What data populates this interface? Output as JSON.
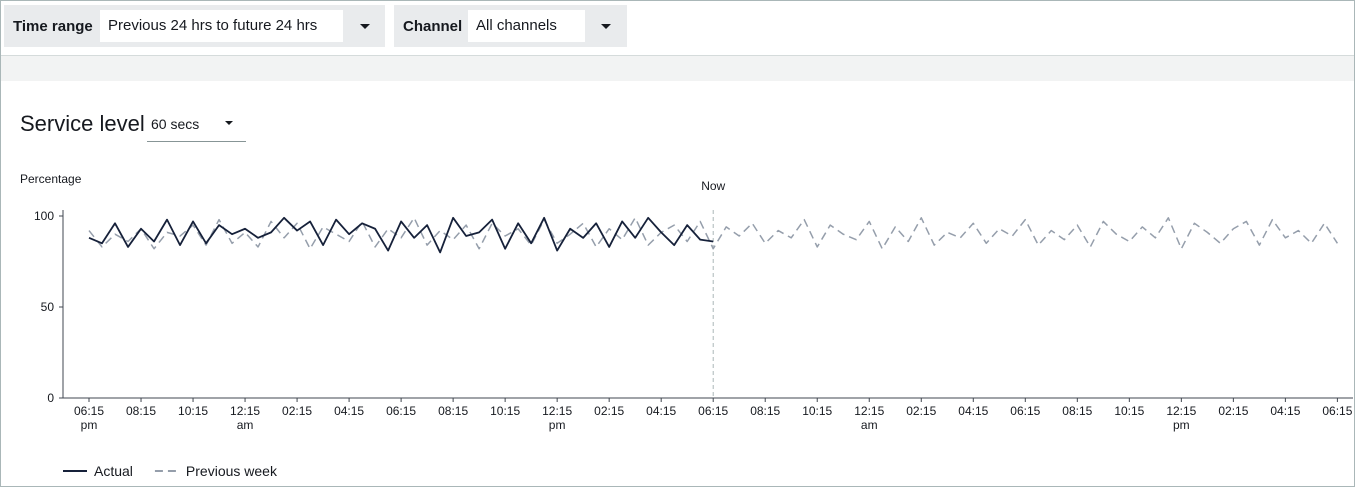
{
  "filters": [
    {
      "label": "Time range",
      "value": "Previous 24 hrs to future 24 hrs"
    },
    {
      "label": "Channel",
      "value": "All channels"
    }
  ],
  "panel": {
    "title": "Service level",
    "dropdown": "60 secs"
  },
  "chart_data": {
    "type": "line",
    "y_label": "Percentage",
    "annotation": {
      "label": "Now",
      "x": 24
    },
    "xlim": [
      -1,
      48.6
    ],
    "ylim": [
      0,
      100
    ],
    "yticks": [
      0,
      50,
      100
    ],
    "xticks": [
      {
        "value": 0,
        "label": "06:15 pm"
      },
      {
        "value": 2,
        "label": "08:15"
      },
      {
        "value": 4,
        "label": "10:15"
      },
      {
        "value": 6,
        "label": "12:15 am"
      },
      {
        "value": 8,
        "label": "02:15"
      },
      {
        "value": 10,
        "label": "04:15"
      },
      {
        "value": 12,
        "label": "06:15"
      },
      {
        "value": 14,
        "label": "08:15"
      },
      {
        "value": 16,
        "label": "10:15"
      },
      {
        "value": 18,
        "label": "12:15 pm"
      },
      {
        "value": 20,
        "label": "02:15"
      },
      {
        "value": 22,
        "label": "04:15"
      },
      {
        "value": 24,
        "label": "06:15"
      },
      {
        "value": 26,
        "label": "08:15"
      },
      {
        "value": 28,
        "label": "10:15"
      },
      {
        "value": 30,
        "label": "12:15 am"
      },
      {
        "value": 32,
        "label": "02:15"
      },
      {
        "value": 34,
        "label": "04:15"
      },
      {
        "value": 36,
        "label": "06:15"
      },
      {
        "value": 38,
        "label": "08:15"
      },
      {
        "value": 40,
        "label": "10:15"
      },
      {
        "value": 42,
        "label": "12:15 pm"
      },
      {
        "value": 44,
        "label": "02:15"
      },
      {
        "value": 46,
        "label": "04:15"
      },
      {
        "value": 48,
        "label": "06:15"
      }
    ],
    "x": [
      0,
      0.5,
      1,
      1.5,
      2,
      2.5,
      3,
      3.5,
      4,
      4.5,
      5,
      5.5,
      6,
      6.5,
      7,
      7.5,
      8,
      8.5,
      9,
      9.5,
      10,
      10.5,
      11,
      11.5,
      12,
      12.5,
      13,
      13.5,
      14,
      14.5,
      15,
      15.5,
      16,
      16.5,
      17,
      17.5,
      18,
      18.5,
      19,
      19.5,
      20,
      20.5,
      21,
      21.5,
      22,
      22.5,
      23,
      23.5,
      24,
      24.5,
      25,
      25.5,
      26,
      26.5,
      27,
      27.5,
      28,
      28.5,
      29,
      29.5,
      30,
      30.5,
      31,
      31.5,
      32,
      32.5,
      33,
      33.5,
      34,
      34.5,
      35,
      35.5,
      36,
      36.5,
      37,
      37.5,
      38,
      38.5,
      39,
      39.5,
      40,
      40.5,
      41,
      41.5,
      42,
      42.5,
      43,
      43.5,
      44,
      44.5,
      45,
      45.5,
      46,
      46.5,
      47,
      47.5,
      48
    ],
    "series": [
      {
        "name": "Actual",
        "color": "#16213a",
        "dashed": false,
        "values": [
          88,
          85,
          96,
          83,
          93,
          86,
          98,
          84,
          97,
          85,
          95,
          90,
          93,
          88,
          91,
          99,
          92,
          97,
          84,
          98,
          90,
          96,
          93,
          81,
          97,
          88,
          95,
          80,
          99,
          89,
          91,
          98,
          82,
          96,
          85,
          99,
          81,
          93,
          88,
          96,
          83,
          97,
          88,
          99,
          91,
          84,
          95,
          87,
          86,
          null,
          null,
          null,
          null,
          null,
          null,
          null,
          null,
          null,
          null,
          null,
          null,
          null,
          null,
          null,
          null,
          null,
          null,
          null,
          null,
          null,
          null,
          null,
          null,
          null,
          null,
          null,
          null,
          null,
          null,
          null,
          null,
          null,
          null,
          null,
          null,
          null,
          null,
          null,
          null,
          null,
          null,
          null,
          null,
          null,
          null,
          null,
          null
        ]
      },
      {
        "name": "Previous week",
        "color": "#959eab",
        "dashed": true,
        "values": [
          92,
          83,
          90,
          86,
          93,
          82,
          91,
          89,
          95,
          84,
          98,
          85,
          91,
          83,
          97,
          88,
          96,
          82,
          94,
          90,
          86,
          97,
          83,
          93,
          88,
          99,
          84,
          92,
          87,
          95,
          82,
          96,
          89,
          93,
          84,
          98,
          85,
          90,
          96,
          83,
          93,
          87,
          99,
          84,
          91,
          95,
          86,
          97,
          82,
          94,
          89,
          96,
          85,
          92,
          88,
          98,
          83,
          95,
          90,
          87,
          97,
          82,
          94,
          86,
          99,
          84,
          91,
          88,
          96,
          85,
          93,
          89,
          98,
          84,
          92,
          87,
          95,
          83,
          97,
          90,
          86,
          94,
          88,
          99,
          82,
          96,
          91,
          85,
          93,
          97,
          84,
          98,
          88,
          92,
          85,
          96,
          85
        ]
      }
    ]
  }
}
